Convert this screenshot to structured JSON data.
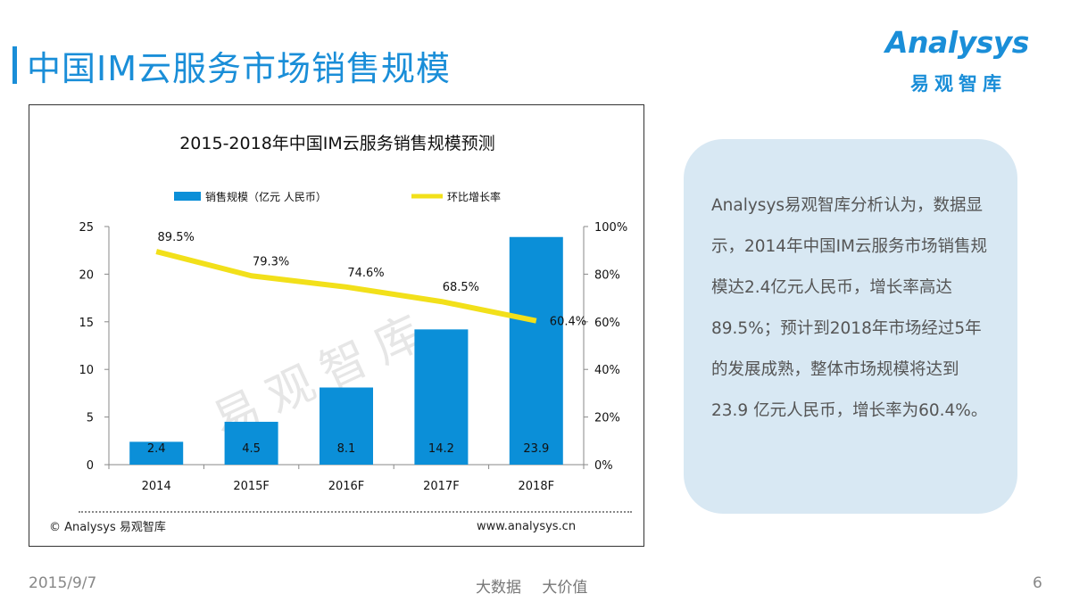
{
  "header": {
    "title": "中国IM云服务市场销售规模",
    "logo_name": "Analysys",
    "logo_cn": "易观智库"
  },
  "chart_data": {
    "type": "bar",
    "title": "2015-2018年中国IM云服务销售规模预测",
    "categories": [
      "2014",
      "2015F",
      "2016F",
      "2017F",
      "2018F"
    ],
    "series": [
      {
        "name": "销售规模（亿元 人民币）",
        "type": "bar",
        "axis": "left",
        "values": [
          2.4,
          4.5,
          8.1,
          14.2,
          23.9
        ],
        "labels": [
          "2.4",
          "4.5",
          "8.1",
          "14.2",
          "23.9"
        ]
      },
      {
        "name": "环比增长率",
        "type": "line",
        "axis": "right",
        "values": [
          89.5,
          79.3,
          74.6,
          68.5,
          60.4
        ],
        "labels": [
          "89.5%",
          "79.3%",
          "74.6%",
          "68.5%",
          "60.4%"
        ]
      }
    ],
    "ylim": [
      0,
      25
    ],
    "yticks": [
      "0",
      "5",
      "10",
      "15",
      "20",
      "25"
    ],
    "y2lim": [
      0,
      100
    ],
    "y2ticks": [
      "0%",
      "20%",
      "40%",
      "60%",
      "80%",
      "100%"
    ],
    "watermark": "易观智库",
    "bar_color": "#0b8fd8",
    "line_color": "#f2e01a"
  },
  "chart_footer": {
    "copyright": "© Analysys 易观智库",
    "url": "www.analysys.cn"
  },
  "info": {
    "text": "Analysys易观智库分析认为，数据显示，2014年中国IM云服务市场销售规模达2.4亿元人民币，增长率高达89.5%；预计到2018年市场经过5年的发展成熟，整体市场规模将达到23.9 亿元人民币，增长率为60.4%。"
  },
  "footer": {
    "date": "2015/9/7",
    "slogan": "大数据 大价值",
    "page": "6"
  }
}
